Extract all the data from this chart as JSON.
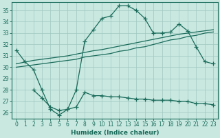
{
  "title": "",
  "xlabel": "Humidex (Indice chaleur)",
  "bg_color": "#c8e8e0",
  "line_color": "#1a6b5a",
  "grid_color": "#a0c8c0",
  "xlim": [
    -0.5,
    23.5
  ],
  "ylim": [
    25.5,
    35.7
  ],
  "xticks": [
    0,
    1,
    2,
    3,
    4,
    5,
    6,
    7,
    8,
    9,
    10,
    11,
    12,
    13,
    14,
    15,
    16,
    17,
    18,
    19,
    20,
    21,
    22,
    23
  ],
  "yticks": [
    26,
    27,
    28,
    29,
    30,
    31,
    32,
    33,
    34,
    35
  ],
  "curve1_x": [
    0,
    1,
    2,
    3,
    4,
    5,
    6,
    7,
    8,
    9,
    10,
    11,
    12,
    13,
    14,
    15,
    16,
    17,
    18,
    19,
    20,
    21,
    22,
    23
  ],
  "curve1_y": [
    31.5,
    30.5,
    29.8,
    28.0,
    26.3,
    25.8,
    26.3,
    28.0,
    32.3,
    33.3,
    34.3,
    34.5,
    35.4,
    35.4,
    35.0,
    34.3,
    33.0,
    33.0,
    33.1,
    33.8,
    33.2,
    31.8,
    30.5,
    30.3
  ],
  "curve2_x": [
    0,
    1,
    2,
    3,
    4,
    5,
    6,
    7,
    8,
    9,
    10,
    11,
    12,
    13,
    14,
    15,
    16,
    17,
    18,
    19,
    20,
    21,
    22,
    23
  ],
  "curve2_y": [
    30.0,
    30.1,
    30.2,
    30.3,
    30.4,
    30.5,
    30.6,
    30.7,
    30.9,
    31.0,
    31.1,
    31.2,
    31.4,
    31.5,
    31.7,
    31.8,
    32.0,
    32.2,
    32.4,
    32.5,
    32.7,
    32.8,
    33.0,
    33.1
  ],
  "curve3_x": [
    0,
    1,
    2,
    3,
    4,
    5,
    6,
    7,
    8,
    9,
    10,
    11,
    12,
    13,
    14,
    15,
    16,
    17,
    18,
    19,
    20,
    21,
    22,
    23
  ],
  "curve3_y": [
    30.3,
    30.45,
    30.6,
    30.7,
    30.8,
    30.9,
    31.0,
    31.15,
    31.3,
    31.45,
    31.55,
    31.7,
    31.85,
    32.0,
    32.15,
    32.3,
    32.45,
    32.6,
    32.75,
    32.9,
    33.0,
    33.1,
    33.2,
    33.3
  ],
  "curve4_x": [
    2,
    3,
    4,
    5,
    6,
    7,
    8,
    9,
    10,
    11,
    12,
    13,
    14,
    15,
    16,
    17,
    18,
    19,
    20,
    21,
    22,
    23
  ],
  "curve4_y": [
    28.0,
    27.3,
    26.5,
    26.2,
    26.3,
    26.5,
    27.8,
    27.5,
    27.5,
    27.4,
    27.4,
    27.3,
    27.2,
    27.2,
    27.1,
    27.1,
    27.1,
    27.0,
    27.0,
    26.8,
    26.8,
    26.7
  ]
}
